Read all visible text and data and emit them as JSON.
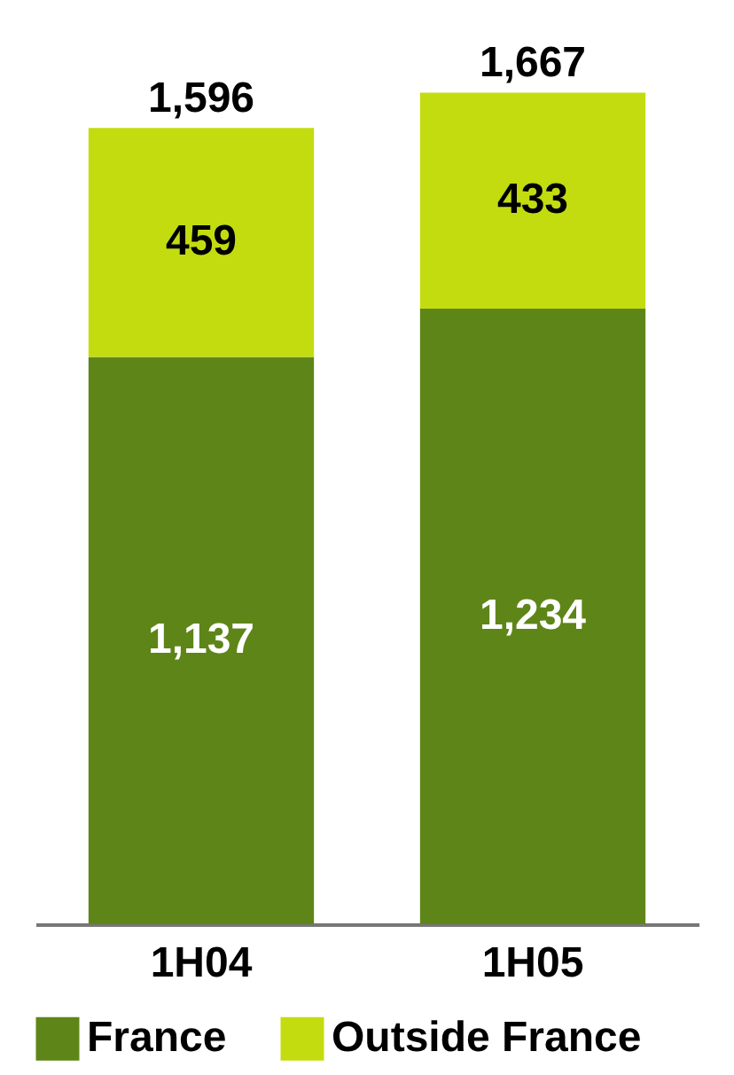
{
  "chart_data": {
    "type": "bar",
    "stacked": true,
    "categories": [
      "1H04",
      "1H05"
    ],
    "series": [
      {
        "name": "France",
        "color": "#5e8518",
        "values": [
          1137,
          1234
        ],
        "value_labels": [
          "1,137",
          "1,234"
        ]
      },
      {
        "name": "Outside France",
        "color": "#c3dc10",
        "values": [
          459,
          433
        ],
        "value_labels": [
          "459",
          "433"
        ]
      }
    ],
    "totals": [
      "1,596",
      "1,667"
    ],
    "legend": "bottom",
    "grid": false
  }
}
